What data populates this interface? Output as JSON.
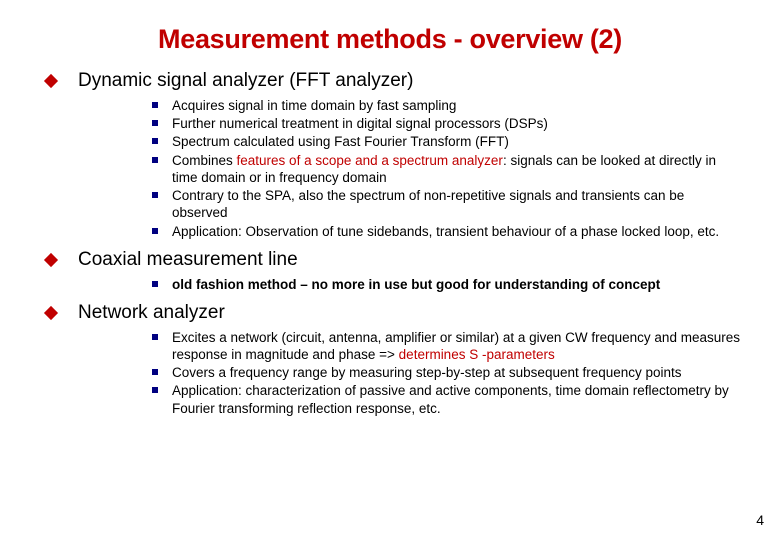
{
  "colors": {
    "title": "#c00000",
    "diamond": "#c00000",
    "square": "#000080",
    "highlight": "#c00000",
    "text": "#000000",
    "background": "#ffffff"
  },
  "typography": {
    "title_fontsize": 27,
    "section_fontsize": 19,
    "sub_fontsize": 13.5,
    "family": "Arial"
  },
  "title": "Measurement methods - overview (2)",
  "page_number": "4",
  "sections": [
    {
      "heading": "Dynamic signal analyzer (FFT analyzer)",
      "items": [
        {
          "segments": [
            {
              "t": "Acquires signal in time domain by fast sampling"
            }
          ]
        },
        {
          "segments": [
            {
              "t": "Further numerical treatment in digital signal processors (DSPs)"
            }
          ]
        },
        {
          "segments": [
            {
              "t": "Spectrum calculated using Fast Fourier Transform (FFT)"
            }
          ]
        },
        {
          "segments": [
            {
              "t": "Combines "
            },
            {
              "t": "features of a scope and a spectrum analyzer",
              "hl": true
            },
            {
              "t": ": signals can be looked at directly in time domain or in frequency domain"
            }
          ]
        },
        {
          "segments": [
            {
              "t": "Contrary to the SPA, also the spectrum of non-repetitive signals and transients can be observed"
            }
          ]
        },
        {
          "segments": [
            {
              "t": "Application: Observation of tune sidebands, transient behaviour of a phase locked loop, etc."
            }
          ]
        }
      ]
    },
    {
      "heading": "Coaxial measurement line",
      "items": [
        {
          "bold": true,
          "segments": [
            {
              "t": "old fashion method – no more in use but good for understanding of concept"
            }
          ]
        }
      ]
    },
    {
      "heading": "Network analyzer",
      "items": [
        {
          "segments": [
            {
              "t": "Excites a network (circuit, antenna, amplifier or similar) at a given CW frequency and measures response in magnitude and phase => "
            },
            {
              "t": "determines S -parameters",
              "hl": true
            }
          ]
        },
        {
          "segments": [
            {
              "t": "Covers a frequency range by measuring step-by-step at subsequent frequency points"
            }
          ]
        },
        {
          "segments": [
            {
              "t": "Application: characterization of passive and active components, time domain reflectometry by Fourier transforming reflection response, etc."
            }
          ]
        }
      ]
    }
  ]
}
